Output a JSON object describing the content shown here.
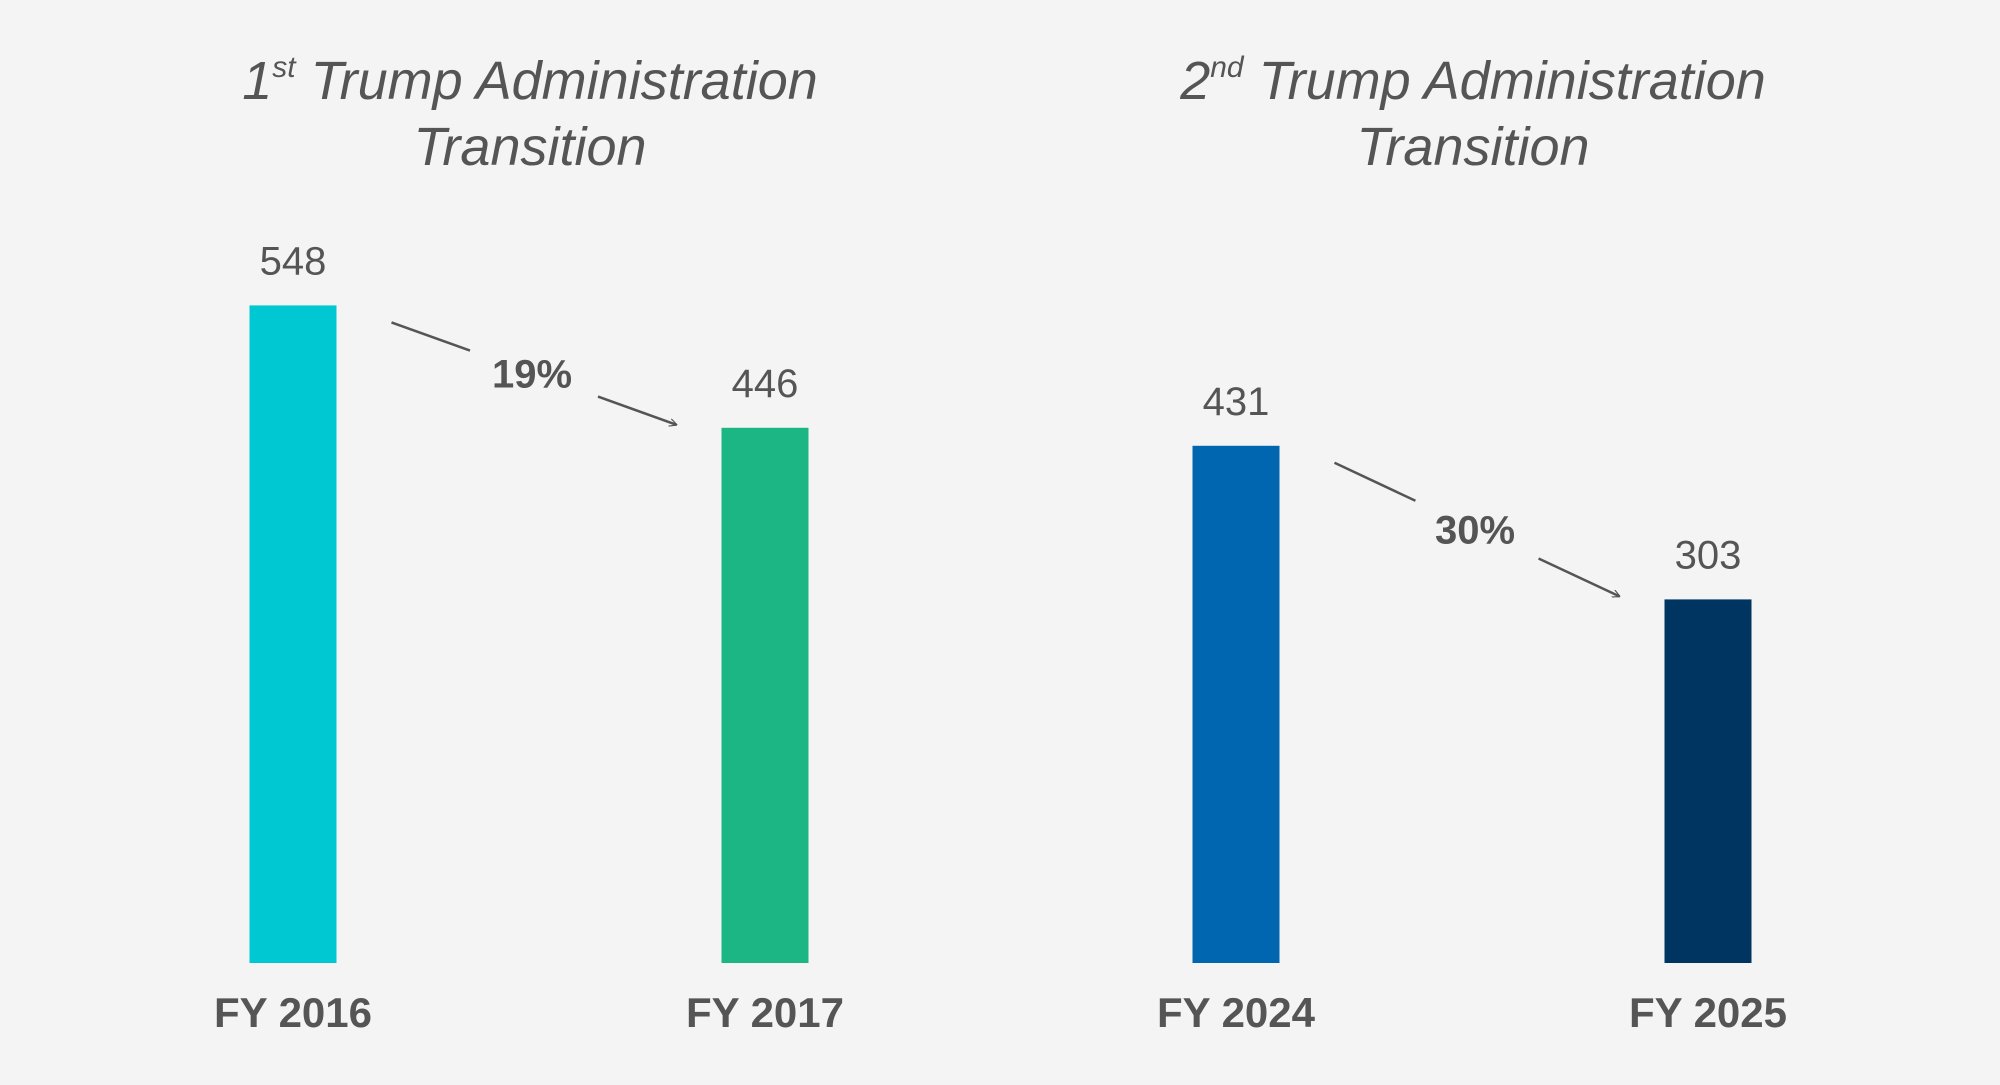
{
  "chart_data": [
    {
      "type": "bar",
      "title": {
        "ordinal_number": "1",
        "ordinal_suffix": "st",
        "line1": "Trump Administration",
        "line2": "Transition"
      },
      "categories": [
        "FY 2016",
        "FY 2017"
      ],
      "values": [
        548,
        446
      ],
      "colors": [
        "#00c8d2",
        "#1cb684"
      ],
      "change_label": "19%",
      "ylim": [
        0,
        600
      ],
      "grid": false
    },
    {
      "type": "bar",
      "title": {
        "ordinal_number": "2",
        "ordinal_suffix": "nd",
        "line1": "Trump Administration",
        "line2": "Transition"
      },
      "categories": [
        "FY 2024",
        "FY 2025"
      ],
      "values": [
        431,
        303
      ],
      "colors": [
        "#0066b0",
        "#003561"
      ],
      "change_label": "30%",
      "ylim": [
        0,
        600
      ],
      "grid": false
    }
  ]
}
